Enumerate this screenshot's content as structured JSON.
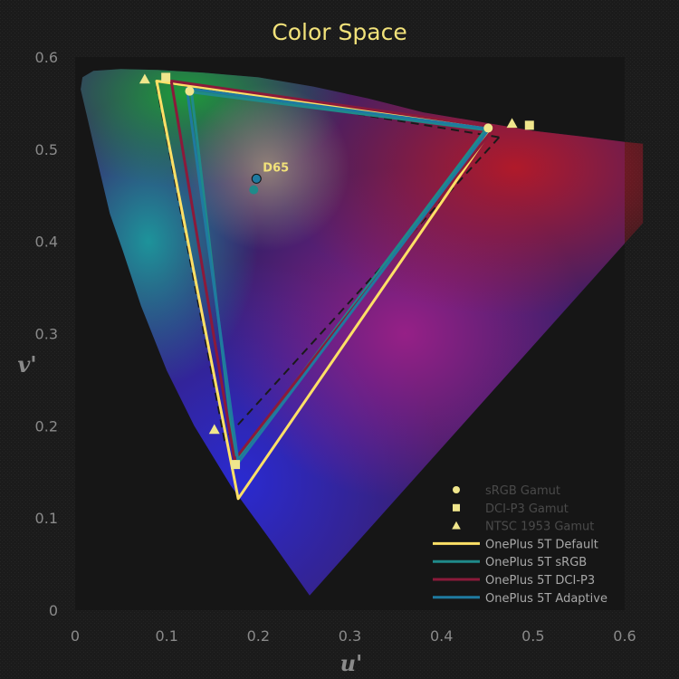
{
  "chart_data": {
    "type": "scatter",
    "title": "Color Space",
    "xlabel": "u'",
    "ylabel": "v'",
    "xlim": [
      0,
      0.6
    ],
    "ylim": [
      0,
      0.6
    ],
    "xticks": [
      0,
      0.1,
      0.2,
      0.3,
      0.4,
      0.5,
      0.6
    ],
    "yticks": [
      0,
      0.1,
      0.2,
      0.3,
      0.4,
      0.5,
      0.6
    ],
    "xtick_labels": [
      "0",
      "0.1",
      "0.2",
      "0.3",
      "0.4",
      "0.5",
      "0.6"
    ],
    "ytick_labels": [
      "0",
      "0.1",
      "0.2",
      "0.3",
      "0.4",
      "0.5",
      "0.6"
    ],
    "grid": false,
    "legend_position": "bottom-right",
    "white_point": {
      "label": "D65",
      "x": 0.198,
      "y": 0.468
    },
    "series": [
      {
        "name": "sRGB Gamut",
        "kind": "marker",
        "marker": "circle",
        "color": "#f0e68c",
        "x": [
          0.451,
          0.125,
          0.175,
          0.198
        ],
        "y": [
          0.523,
          0.563,
          0.158,
          0.468
        ]
      },
      {
        "name": "DCI-P3 Gamut",
        "kind": "marker",
        "marker": "square",
        "color": "#f0e68c",
        "x": [
          0.496,
          0.099,
          0.175
        ],
        "y": [
          0.526,
          0.578,
          0.158
        ]
      },
      {
        "name": "NTSC 1953 Gamut",
        "kind": "marker",
        "marker": "triangle",
        "color": "#f0e68c",
        "x": [
          0.477,
          0.076,
          0.152
        ],
        "y": [
          0.528,
          0.576,
          0.196
        ]
      },
      {
        "name": "OnePlus 5T Default",
        "kind": "line",
        "color": "#ffe066",
        "x": [
          0.455,
          0.089,
          0.178,
          0.455
        ],
        "y": [
          0.522,
          0.574,
          0.121,
          0.522
        ]
      },
      {
        "name": "OnePlus 5T sRGB",
        "kind": "line",
        "color": "#1f8a8a",
        "x": [
          0.448,
          0.127,
          0.175,
          0.448
        ],
        "y": [
          0.521,
          0.562,
          0.161,
          0.521
        ]
      },
      {
        "name": "OnePlus 5T DCI-P3",
        "kind": "line",
        "color": "#8b1a3a",
        "x": [
          0.458,
          0.105,
          0.174,
          0.458
        ],
        "y": [
          0.524,
          0.574,
          0.163,
          0.524
        ]
      },
      {
        "name": "OnePlus 5T Adaptive",
        "kind": "line",
        "color": "#1f7aa0",
        "x": [
          0.452,
          0.122,
          0.178,
          0.452
        ],
        "y": [
          0.522,
          0.566,
          0.16,
          0.522
        ]
      }
    ],
    "reference_dashed": {
      "x": [
        0.463,
        0.088,
        0.163,
        0.463
      ],
      "y": [
        0.513,
        0.574,
        0.185,
        0.513
      ]
    },
    "spectral_locus": {
      "x": [
        0.256,
        0.214,
        0.17,
        0.13,
        0.1,
        0.072,
        0.052,
        0.038,
        0.026,
        0.012,
        0.006,
        0.008,
        0.02,
        0.05,
        0.09,
        0.14,
        0.2,
        0.26,
        0.32,
        0.38,
        0.44,
        0.5,
        0.56,
        0.6,
        0.62
      ],
      "y": [
        0.016,
        0.075,
        0.135,
        0.2,
        0.26,
        0.33,
        0.39,
        0.43,
        0.48,
        0.54,
        0.565,
        0.578,
        0.585,
        0.587,
        0.586,
        0.583,
        0.578,
        0.568,
        0.555,
        0.54,
        0.53,
        0.52,
        0.513,
        0.508,
        0.506
      ]
    }
  }
}
